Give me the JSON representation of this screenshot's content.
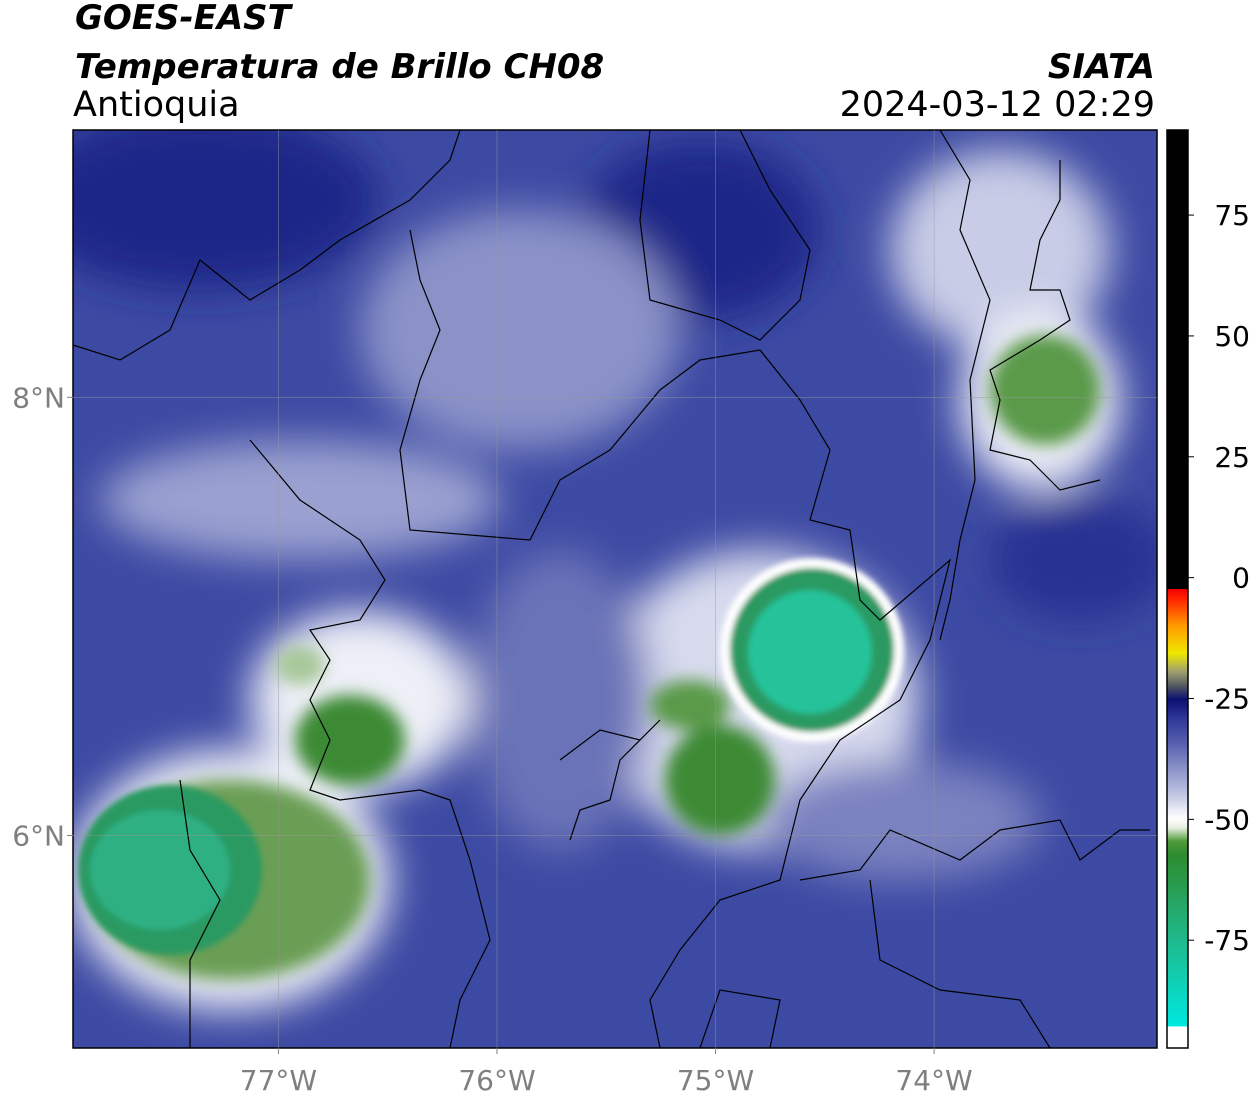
{
  "header": {
    "title": "GOES-EAST",
    "subtitle": "Temperatura de Brillo CH08",
    "region": "Antioquia",
    "source": "SIATA",
    "timestamp": "2024-03-12 02:29"
  },
  "map": {
    "xlim": [
      -77.94,
      -72.98
    ],
    "ylim": [
      5.03,
      9.22
    ],
    "xticks": [
      {
        "value": -77,
        "label": "77°W"
      },
      {
        "value": -76,
        "label": "76°W"
      },
      {
        "value": -75,
        "label": "75°W"
      },
      {
        "value": -74,
        "label": "74°W"
      }
    ],
    "yticks": [
      {
        "value": 6,
        "label": "6°N"
      },
      {
        "value": 8,
        "label": "8°N"
      }
    ],
    "grid": true
  },
  "colorbar": {
    "lim": [
      -97.3,
      92.6
    ],
    "ticks": [
      75,
      50,
      25,
      0,
      -25,
      -50,
      -75
    ]
  }
}
